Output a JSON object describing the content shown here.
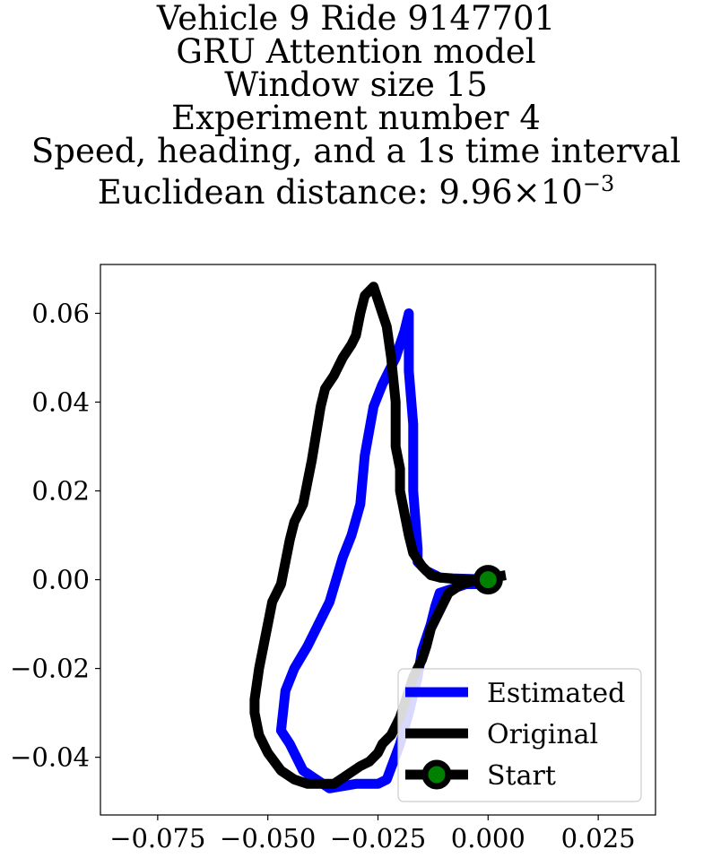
{
  "title_lines": [
    "Vehicle 9 Ride 9147701",
    "GRU Attention model",
    "Window size 15",
    "Experiment number 4",
    "Speed, heading, and a 1s time interval"
  ],
  "title_distance": {
    "prefix": "Euclidean distance: ",
    "mantissa": "9.96",
    "times": "×",
    "base": "10",
    "exponent": "−3"
  },
  "chart_data": {
    "type": "line",
    "xlabel": "",
    "ylabel": "",
    "xlim": [
      -0.088,
      0.038
    ],
    "ylim": [
      -0.053,
      0.071
    ],
    "xticks": [
      -0.075,
      -0.05,
      -0.025,
      0.0,
      0.025
    ],
    "xtick_labels": [
      "−0.075",
      "−0.050",
      "−0.025",
      "0.000",
      "0.025"
    ],
    "yticks": [
      -0.04,
      -0.02,
      0.0,
      0.02,
      0.04,
      0.06
    ],
    "ytick_labels": [
      "−0.04",
      "−0.02",
      "0.00",
      "0.02",
      "0.04",
      "0.06"
    ],
    "grid": false,
    "legend_position": "lower right",
    "series": [
      {
        "name": "Estimated",
        "color": "#0000ff",
        "x": [
          0.0,
          -0.001,
          -0.005,
          -0.008,
          -0.011,
          -0.012,
          -0.013,
          -0.015,
          -0.016,
          -0.017,
          -0.018,
          -0.02,
          -0.023,
          -0.025,
          -0.03,
          -0.036,
          -0.042,
          -0.045,
          -0.047,
          -0.046,
          -0.044,
          -0.041,
          -0.036,
          -0.033,
          -0.031,
          -0.029,
          -0.028,
          -0.026,
          -0.024,
          -0.021,
          -0.019,
          -0.018,
          -0.018,
          -0.017,
          -0.017,
          -0.016,
          -0.016,
          -0.014,
          -0.012,
          -0.011,
          -0.008,
          -0.005,
          -0.002,
          0.0
        ],
        "y": [
          -0.0005,
          -0.001,
          -0.001,
          -0.002,
          -0.003,
          -0.006,
          -0.01,
          -0.016,
          -0.022,
          -0.026,
          -0.03,
          -0.037,
          -0.045,
          -0.046,
          -0.046,
          -0.047,
          -0.043,
          -0.037,
          -0.034,
          -0.025,
          -0.02,
          -0.015,
          -0.005,
          0.005,
          0.01,
          0.017,
          0.028,
          0.039,
          0.044,
          0.05,
          0.056,
          0.06,
          0.047,
          0.035,
          0.02,
          0.007,
          0.004,
          0.002,
          0.001,
          0.0005,
          0.0003,
          0.0002,
          0.0001,
          0.0
        ]
      },
      {
        "name": "Original",
        "color": "#000000",
        "x": [
          0.004,
          0.001,
          -0.002,
          -0.006,
          -0.009,
          -0.011,
          -0.013,
          -0.014,
          -0.015,
          -0.017,
          -0.018,
          -0.019,
          -0.02,
          -0.021,
          -0.022,
          -0.024,
          -0.025,
          -0.027,
          -0.029,
          -0.032,
          -0.035,
          -0.038,
          -0.041,
          -0.044,
          -0.047,
          -0.05,
          -0.052,
          -0.053,
          -0.053,
          -0.052,
          -0.051,
          -0.05,
          -0.049,
          -0.047,
          -0.046,
          -0.045,
          -0.044,
          -0.042,
          -0.041,
          -0.04,
          -0.039,
          -0.038,
          -0.037,
          -0.035,
          -0.033,
          -0.031,
          -0.03,
          -0.029,
          -0.028,
          -0.027,
          -0.026,
          -0.025,
          -0.024,
          -0.023,
          -0.022,
          -0.021,
          -0.021,
          -0.02,
          -0.02,
          -0.019,
          -0.018,
          -0.017,
          -0.015,
          -0.013,
          -0.011,
          -0.008,
          -0.005,
          -0.002,
          0.0
        ],
        "y": [
          0.001,
          0.0005,
          0.0,
          -0.001,
          -0.003,
          -0.007,
          -0.011,
          -0.015,
          -0.018,
          -0.022,
          -0.025,
          -0.028,
          -0.031,
          -0.033,
          -0.035,
          -0.037,
          -0.039,
          -0.041,
          -0.042,
          -0.044,
          -0.046,
          -0.046,
          -0.046,
          -0.045,
          -0.043,
          -0.039,
          -0.035,
          -0.03,
          -0.027,
          -0.02,
          -0.015,
          -0.01,
          -0.005,
          -0.001,
          0.004,
          0.009,
          0.013,
          0.017,
          0.022,
          0.027,
          0.033,
          0.039,
          0.043,
          0.046,
          0.05,
          0.053,
          0.055,
          0.06,
          0.064,
          0.065,
          0.066,
          0.063,
          0.06,
          0.057,
          0.05,
          0.04,
          0.03,
          0.025,
          0.02,
          0.015,
          0.01,
          0.006,
          0.003,
          0.001,
          0.0005,
          0.0002,
          0.0001,
          0.0,
          0.0
        ]
      }
    ],
    "start_marker": {
      "name": "Start",
      "x": 0.0,
      "y": 0.0,
      "fill": "#008000",
      "edge": "#000000"
    }
  }
}
